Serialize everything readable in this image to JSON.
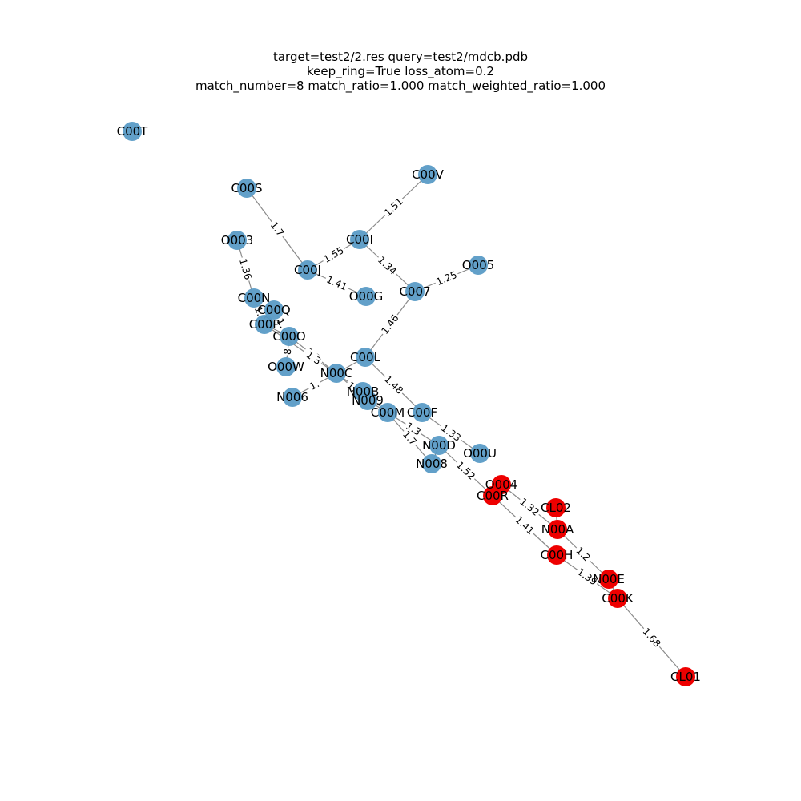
{
  "title_lines": [
    "target=test2/2.res query=test2/mdcb.pdb",
    "keep_ring=True loss_atom=0.2",
    "match_number=8 match_ratio=1.000 match_weighted_ratio=1.000"
  ],
  "colors": {
    "unmatched": "#5a9bc6",
    "matched": "#ee0000",
    "edge": "#8a8a8a",
    "label": "#000000"
  },
  "nodes": [
    {
      "id": "C00T",
      "matched": false
    },
    {
      "id": "C00V",
      "matched": false
    },
    {
      "id": "C00S",
      "matched": false
    },
    {
      "id": "C00I",
      "matched": false
    },
    {
      "id": "O003",
      "matched": false
    },
    {
      "id": "O005",
      "matched": false
    },
    {
      "id": "C00J",
      "matched": false
    },
    {
      "id": "O00G",
      "matched": false
    },
    {
      "id": "C007",
      "matched": false
    },
    {
      "id": "C00N",
      "matched": false
    },
    {
      "id": "C00Q",
      "matched": false
    },
    {
      "id": "C00P",
      "matched": false
    },
    {
      "id": "C00O",
      "matched": false
    },
    {
      "id": "C00L",
      "matched": false
    },
    {
      "id": "O00W",
      "matched": false
    },
    {
      "id": "N00C",
      "matched": false
    },
    {
      "id": "N006",
      "matched": false
    },
    {
      "id": "N00B",
      "matched": false
    },
    {
      "id": "N009",
      "matched": false
    },
    {
      "id": "C00M",
      "matched": false
    },
    {
      "id": "C00F",
      "matched": false
    },
    {
      "id": "N00D",
      "matched": false
    },
    {
      "id": "O00U",
      "matched": false
    },
    {
      "id": "N008",
      "matched": false
    },
    {
      "id": "O004",
      "matched": true
    },
    {
      "id": "C00R",
      "matched": true
    },
    {
      "id": "CL02",
      "matched": true
    },
    {
      "id": "N00A",
      "matched": true
    },
    {
      "id": "C00H",
      "matched": true
    },
    {
      "id": "N00E",
      "matched": true
    },
    {
      "id": "C00K",
      "matched": true
    },
    {
      "id": "CL01",
      "matched": true
    }
  ],
  "edges": [
    {
      "source": "C00S",
      "target": "C00J",
      "label": "1.7"
    },
    {
      "source": "C00V",
      "target": "C00I",
      "label": "1.51"
    },
    {
      "source": "C00I",
      "target": "C00J",
      "label": "1.55"
    },
    {
      "source": "C00I",
      "target": "C007",
      "label": "1.34"
    },
    {
      "source": "C00J",
      "target": "O00G",
      "label": "1.41"
    },
    {
      "source": "O005",
      "target": "C007",
      "label": "1.25"
    },
    {
      "source": "O003",
      "target": "C00N",
      "label": "1.36"
    },
    {
      "source": "C00N",
      "target": "C00P",
      "label": "1."
    },
    {
      "source": "C00Q",
      "target": "C00P",
      "label": "1."
    },
    {
      "source": "C00Q",
      "target": "C00O",
      "label": "1."
    },
    {
      "source": "C00P",
      "target": "C00O",
      "label": ""
    },
    {
      "source": "C00O",
      "target": "O00W",
      "label": "8"
    },
    {
      "source": "C00O",
      "target": "N00C",
      "label": "1.3"
    },
    {
      "source": "C00P",
      "target": "N00B",
      "label": "1.3"
    },
    {
      "source": "C007",
      "target": "C00L",
      "label": "1.46"
    },
    {
      "source": "C00L",
      "target": "N00C",
      "label": ""
    },
    {
      "source": "C00L",
      "target": "C00F",
      "label": "1.48"
    },
    {
      "source": "N00C",
      "target": "N006",
      "label": "1."
    },
    {
      "source": "N00C",
      "target": "N009",
      "label": "1."
    },
    {
      "source": "N00B",
      "target": "C00M",
      "label": ""
    },
    {
      "source": "N009",
      "target": "C00M",
      "label": ""
    },
    {
      "source": "C00M",
      "target": "N00D",
      "label": "1.3"
    },
    {
      "source": "C00M",
      "target": "N008",
      "label": "1.7"
    },
    {
      "source": "C00F",
      "target": "O00U",
      "label": "1.33"
    },
    {
      "source": "N00D",
      "target": "N008",
      "label": ""
    },
    {
      "source": "N00D",
      "target": "C00R",
      "label": "1.52"
    },
    {
      "source": "C00R",
      "target": "O004",
      "label": ""
    },
    {
      "source": "C00R",
      "target": "C00H",
      "label": "1.41"
    },
    {
      "source": "O004",
      "target": "N00A",
      "label": "1.32"
    },
    {
      "source": "CL02",
      "target": "N00A",
      "label": ""
    },
    {
      "source": "N00A",
      "target": "N00E",
      "label": "1.2"
    },
    {
      "source": "C00H",
      "target": "C00K",
      "label": "1.39"
    },
    {
      "source": "N00E",
      "target": "C00K",
      "label": ""
    },
    {
      "source": "C00K",
      "target": "CL01",
      "label": "1.68"
    }
  ]
}
